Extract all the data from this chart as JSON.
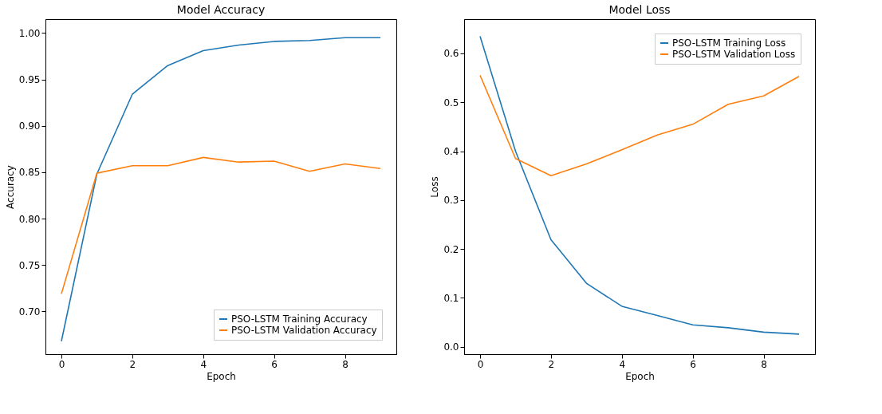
{
  "chart_data": [
    {
      "type": "line",
      "title": "Model Accuracy",
      "xlabel": "Epoch",
      "ylabel": "Accuracy",
      "x": [
        0,
        1,
        2,
        3,
        4,
        5,
        6,
        7,
        8,
        9
      ],
      "xlim": [
        -0.45,
        9.45
      ],
      "xticks": [
        0,
        2,
        4,
        6,
        8
      ],
      "ylim": [
        0.654,
        1.015
      ],
      "yticks": [
        {
          "value": 0.7,
          "label": "0.70"
        },
        0.75,
        {
          "value": 0.8,
          "label": "0.80"
        },
        0.85,
        {
          "value": 0.9,
          "label": "0.90"
        },
        0.95,
        {
          "value": 1.0,
          "label": "1.00"
        }
      ],
      "grid": false,
      "legend": "bottom right",
      "marker": "none",
      "line_style": "solid",
      "series": [
        {
          "name": "PSO-LSTM Training Accuracy",
          "color": "#1f77b4",
          "values": [
            0.668,
            0.848,
            0.934,
            0.965,
            0.981,
            0.987,
            0.991,
            0.992,
            0.995,
            0.995
          ]
        },
        {
          "name": "PSO-LSTM Validation Accuracy",
          "color": "#ff7f0e",
          "values": [
            0.719,
            0.849,
            0.857,
            0.857,
            0.866,
            0.861,
            0.862,
            0.851,
            0.859,
            0.854
          ]
        }
      ]
    },
    {
      "type": "line",
      "title": "Model Loss",
      "xlabel": "Epoch",
      "ylabel": "Loss",
      "x": [
        0,
        1,
        2,
        3,
        4,
        5,
        6,
        7,
        8,
        9
      ],
      "xlim": [
        -0.45,
        9.45
      ],
      "xticks": [
        0,
        2,
        4,
        6,
        8
      ],
      "ylim": [
        -0.015,
        0.67
      ],
      "yticks": [
        {
          "value": 0.0,
          "label": "0.0"
        },
        0.1,
        0.2,
        0.3,
        0.4,
        0.5,
        0.6
      ],
      "grid": false,
      "legend": "top right",
      "marker": "none",
      "line_style": "solid",
      "series": [
        {
          "name": "PSO-LSTM Training Loss",
          "color": "#1f77b4",
          "values": [
            0.635,
            0.4,
            0.219,
            0.13,
            0.083,
            0.064,
            0.045,
            0.039,
            0.03,
            0.026
          ]
        },
        {
          "name": "PSO-LSTM Validation Loss",
          "color": "#ff7f0e",
          "values": [
            0.555,
            0.385,
            0.35,
            0.374,
            0.403,
            0.433,
            0.455,
            0.496,
            0.513,
            0.553
          ]
        }
      ]
    }
  ]
}
